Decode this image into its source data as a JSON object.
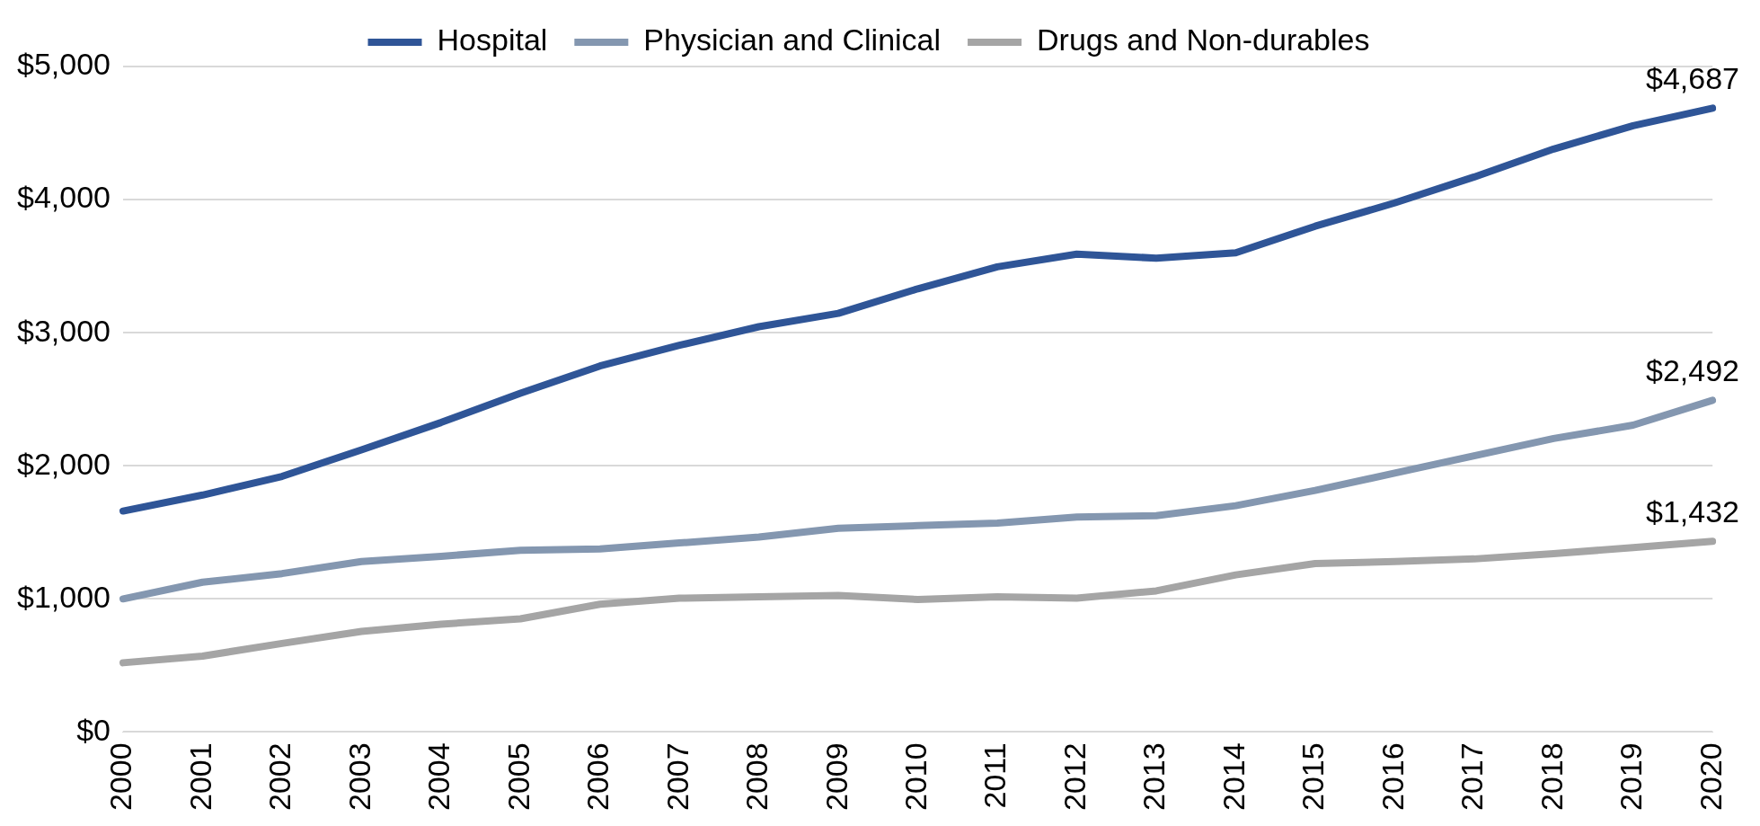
{
  "chart_data": {
    "type": "line",
    "categories": [
      "2000",
      "2001",
      "2002",
      "2003",
      "2004",
      "2005",
      "2006",
      "2007",
      "2008",
      "2009",
      "2010",
      "2011",
      "2012",
      "2013",
      "2014",
      "2015",
      "2016",
      "2017",
      "2018",
      "2019",
      "2020"
    ],
    "series": [
      {
        "name": "Hospital",
        "color": "#2f5597",
        "values": [
          1660,
          1780,
          1920,
          2120,
          2325,
          2545,
          2750,
          2905,
          3045,
          3145,
          3330,
          3495,
          3590,
          3560,
          3600,
          3800,
          3975,
          4170,
          4380,
          4555,
          4687
        ],
        "value_labels": [
          null,
          null,
          null,
          null,
          null,
          null,
          null,
          null,
          null,
          null,
          null,
          null,
          null,
          null,
          null,
          null,
          null,
          null,
          null,
          null,
          "$4,687"
        ]
      },
      {
        "name": "Physician and Clinical",
        "color": "#8497b0",
        "values": [
          1000,
          1125,
          1190,
          1280,
          1320,
          1365,
          1375,
          1420,
          1465,
          1530,
          1550,
          1570,
          1615,
          1625,
          1700,
          1815,
          1945,
          2075,
          2205,
          2305,
          2492
        ],
        "value_labels": [
          null,
          null,
          null,
          null,
          null,
          null,
          null,
          null,
          null,
          null,
          null,
          null,
          null,
          null,
          null,
          null,
          null,
          null,
          null,
          null,
          "$2,492"
        ]
      },
      {
        "name": "Drugs and Non-durables",
        "color": "#a5a5a5",
        "values": [
          520,
          570,
          665,
          755,
          810,
          850,
          960,
          1005,
          1015,
          1025,
          995,
          1015,
          1005,
          1060,
          1180,
          1265,
          1280,
          1300,
          1340,
          1385,
          1432
        ],
        "value_labels": [
          null,
          null,
          null,
          null,
          null,
          null,
          null,
          null,
          null,
          null,
          null,
          null,
          null,
          null,
          null,
          null,
          null,
          null,
          null,
          null,
          "$1,432"
        ]
      }
    ],
    "ylim": [
      0,
      5000
    ],
    "yticks": [
      {
        "value": 0,
        "label": "$0"
      },
      {
        "value": 1000,
        "label": "$1,000"
      },
      {
        "value": 2000,
        "label": "$2,000"
      },
      {
        "value": 3000,
        "label": "$3,000"
      },
      {
        "value": 4000,
        "label": "$4,000"
      },
      {
        "value": 5000,
        "label": "$5,000"
      }
    ],
    "grid": "y",
    "legend": "top",
    "marker": "none",
    "line_style": "solid"
  }
}
